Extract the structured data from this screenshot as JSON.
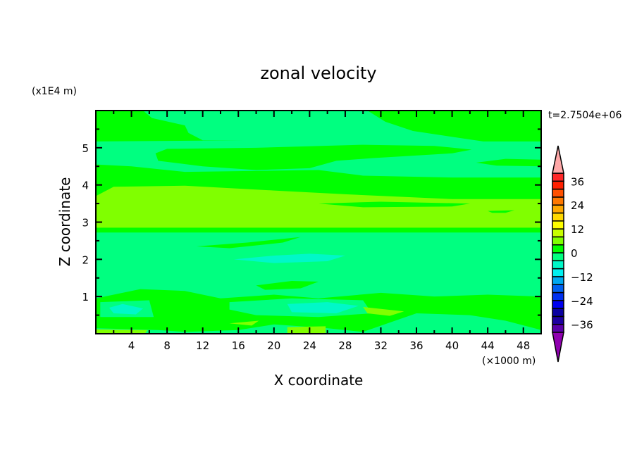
{
  "chart_data": {
    "type": "heatmap",
    "subtype": "filled-contour",
    "title": "zonal velocity",
    "xlabel": "X coordinate",
    "ylabel": "Z coordinate",
    "x_unit_label": "(×1000 m)",
    "y_unit_label": "(x1E4 m)",
    "time_label": "t=2.7504e+06",
    "xlim": [
      0,
      50
    ],
    "ylim": [
      0,
      6
    ],
    "x_ticks": [
      4,
      8,
      12,
      16,
      20,
      24,
      28,
      32,
      36,
      40,
      44,
      48
    ],
    "y_ticks": [
      1,
      2,
      3,
      4,
      5
    ],
    "colorbar": {
      "levels": [
        -40,
        -36,
        -32,
        -28,
        -24,
        -20,
        -16,
        -12,
        -8,
        -4,
        0,
        4,
        8,
        12,
        16,
        20,
        24,
        28,
        32,
        36,
        40
      ],
      "tick_labels": [
        -36,
        -24,
        -12,
        0,
        12,
        24,
        36
      ],
      "colors": [
        "#5a00a8",
        "#1e00a0",
        "#0a00a0",
        "#0000f0",
        "#0030f0",
        "#0060f0",
        "#00a8f0",
        "#00f0f0",
        "#00f8c8",
        "#00ff80",
        "#00ff00",
        "#80ff00",
        "#c8ff00",
        "#ffff00",
        "#ffd800",
        "#ffa800",
        "#ff7800",
        "#ff5000",
        "#ff2000",
        "#ff2828"
      ],
      "under_color": "#9000b0",
      "over_color": "#ffa8a8"
    },
    "background_value": -2,
    "regions": [
      {
        "value": 2,
        "points": [
          [
            0,
            6
          ],
          [
            5.3,
            6
          ],
          [
            6.3,
            5.8
          ],
          [
            10,
            5.6
          ],
          [
            10.4,
            5.4
          ],
          [
            12,
            5.2
          ],
          [
            16.6,
            5.2
          ],
          [
            0,
            5.17
          ]
        ]
      },
      {
        "value": 2,
        "points": [
          [
            30.5,
            6
          ],
          [
            50,
            6
          ],
          [
            50,
            5.17
          ],
          [
            43.5,
            5.17
          ],
          [
            35.6,
            5.45
          ],
          [
            32.5,
            5.7
          ]
        ]
      },
      {
        "value": 2,
        "points": [
          [
            6.7,
            4.85
          ],
          [
            8,
            4.97
          ],
          [
            18,
            5.0
          ],
          [
            30,
            5.08
          ],
          [
            38,
            5.05
          ],
          [
            42.2,
            4.95
          ],
          [
            40,
            4.85
          ],
          [
            31,
            4.72
          ],
          [
            27,
            4.65
          ],
          [
            24,
            4.45
          ],
          [
            18,
            4.4
          ],
          [
            12,
            4.5
          ],
          [
            7,
            4.65
          ]
        ]
      },
      {
        "value": 2,
        "points": [
          [
            42.7,
            4.6
          ],
          [
            46,
            4.7
          ],
          [
            50,
            4.68
          ],
          [
            50,
            4.5
          ],
          [
            45,
            4.52
          ]
        ]
      },
      {
        "value": 2,
        "points": [
          [
            0,
            4.55
          ],
          [
            4,
            4.5
          ],
          [
            10,
            4.35
          ],
          [
            25,
            4.4
          ],
          [
            30,
            4.25
          ],
          [
            40,
            4.2
          ],
          [
            50,
            4.2
          ],
          [
            50,
            2.72
          ],
          [
            0,
            2.72
          ]
        ]
      },
      {
        "value": 6,
        "points": [
          [
            0,
            3.7
          ],
          [
            2,
            3.95
          ],
          [
            10,
            3.98
          ],
          [
            20,
            3.85
          ],
          [
            28,
            3.75
          ],
          [
            40,
            3.62
          ],
          [
            50,
            3.62
          ],
          [
            50,
            2.85
          ],
          [
            0,
            2.85
          ]
        ]
      },
      {
        "value": 2,
        "points": [
          [
            25,
            3.5
          ],
          [
            32,
            3.55
          ],
          [
            42,
            3.5
          ],
          [
            40,
            3.42
          ],
          [
            30,
            3.4
          ]
        ]
      },
      {
        "value": 2,
        "points": [
          [
            44,
            3.3
          ],
          [
            47,
            3.32
          ],
          [
            46,
            3.25
          ],
          [
            44.5,
            3.25
          ]
        ]
      },
      {
        "value": 2,
        "points": [
          [
            11.3,
            2.35
          ],
          [
            17,
            2.45
          ],
          [
            23,
            2.6
          ],
          [
            21,
            2.45
          ],
          [
            15,
            2.3
          ]
        ]
      },
      {
        "value": -6,
        "points": [
          [
            15.5,
            2.0
          ],
          [
            20,
            2.1
          ],
          [
            24,
            2.15
          ],
          [
            28,
            2.1
          ],
          [
            26,
            1.95
          ],
          [
            20,
            1.9
          ]
        ]
      },
      {
        "value": 2,
        "points": [
          [
            18,
            1.3
          ],
          [
            22,
            1.42
          ],
          [
            25,
            1.4
          ],
          [
            23,
            1.22
          ],
          [
            19,
            1.18
          ]
        ]
      },
      {
        "value": 2,
        "points": [
          [
            0,
            0.95
          ],
          [
            5,
            1.2
          ],
          [
            10,
            1.15
          ],
          [
            14,
            0.95
          ],
          [
            20,
            1.05
          ],
          [
            25,
            0.95
          ],
          [
            32,
            1.1
          ],
          [
            38,
            1.0
          ],
          [
            44,
            1.05
          ],
          [
            50,
            1.0
          ],
          [
            50,
            0.1
          ],
          [
            46,
            0.35
          ],
          [
            42,
            0.5
          ],
          [
            36,
            0.55
          ],
          [
            33,
            0.3
          ],
          [
            30,
            0.05
          ],
          [
            26,
            0.15
          ],
          [
            20,
            0.25
          ],
          [
            16,
            0.1
          ],
          [
            10,
            0.05
          ],
          [
            7,
            0.1
          ],
          [
            0,
            0.15
          ]
        ]
      },
      {
        "value": -2,
        "points": [
          [
            15,
            0.85
          ],
          [
            22,
            0.95
          ],
          [
            30,
            0.9
          ],
          [
            31,
            0.55
          ],
          [
            25,
            0.45
          ],
          [
            18,
            0.5
          ],
          [
            15,
            0.65
          ]
        ]
      },
      {
        "value": -6,
        "points": [
          [
            21.5,
            0.8
          ],
          [
            26,
            0.85
          ],
          [
            29.5,
            0.75
          ],
          [
            27,
            0.55
          ],
          [
            22,
            0.58
          ]
        ]
      },
      {
        "value": -2,
        "points": [
          [
            0.5,
            0.85
          ],
          [
            6,
            0.9
          ],
          [
            6.5,
            0.45
          ],
          [
            0.5,
            0.45
          ]
        ]
      },
      {
        "value": -6,
        "points": [
          [
            1.5,
            0.7
          ],
          [
            3,
            0.8
          ],
          [
            5.3,
            0.68
          ],
          [
            4.5,
            0.52
          ],
          [
            2,
            0.55
          ]
        ]
      },
      {
        "value": 6,
        "points": [
          [
            21.5,
            0
          ],
          [
            21.5,
            0.18
          ],
          [
            25.8,
            0.2
          ],
          [
            25.8,
            0
          ]
        ]
      },
      {
        "value": 6,
        "points": [
          [
            15,
            0.28
          ],
          [
            18.3,
            0.35
          ],
          [
            17.5,
            0.22
          ]
        ]
      },
      {
        "value": 6,
        "points": [
          [
            30,
            0.72
          ],
          [
            34.6,
            0.6
          ],
          [
            33,
            0.48
          ],
          [
            30.5,
            0.55
          ]
        ]
      },
      {
        "value": 6,
        "points": [
          [
            0,
            0
          ],
          [
            0,
            0.12
          ],
          [
            5.8,
            0.1
          ],
          [
            5.5,
            0
          ]
        ]
      }
    ]
  }
}
